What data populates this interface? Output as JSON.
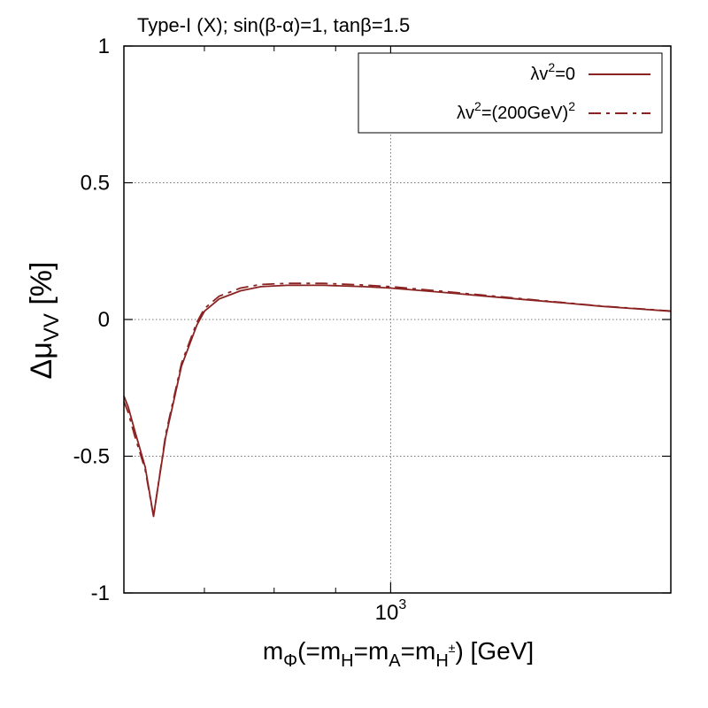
{
  "chart_data": {
    "type": "line",
    "title": "Type-I (X); sin(β-α)=1, tanβ=1.5",
    "ylabel": {
      "main": "Δμ",
      "sub": "VV",
      "unit": " [%]"
    },
    "xlabel": {
      "m": "m",
      "sub_phi": "Φ",
      "part1": "(=m",
      "sub_H": "H",
      "part2": "=m",
      "sub_A": "A",
      "part3": "=m",
      "sub_Hpm": "H",
      "sup_pm": "±",
      "part4": ") [GeV]"
    },
    "x_scale": "log",
    "xlim": [
      600,
      1710
    ],
    "ylim": [
      -1,
      1
    ],
    "y_ticks": [
      {
        "value": 1,
        "label": "1"
      },
      {
        "value": 0.5,
        "label": "0.5"
      },
      {
        "value": 0,
        "label": "0"
      },
      {
        "value": -0.5,
        "label": "-0.5"
      },
      {
        "value": -1,
        "label": "-1"
      }
    ],
    "x_ticks": [
      {
        "value": 1000,
        "base": "10",
        "exp": "3"
      }
    ],
    "x_minor_ticks": [
      700,
      800,
      900
    ],
    "grid": true,
    "legend_position": "top-right",
    "series": [
      {
        "name": {
          "lhs": "λv",
          "sup1": "2",
          "rhs": "=0",
          "sup2": ""
        },
        "style": "solid",
        "color": "#8b2323",
        "x": [
          600,
          605,
          612,
          625,
          635,
          640,
          650,
          670,
          690,
          700,
          720,
          750,
          780,
          820,
          880,
          950,
          1000,
          1100,
          1200,
          1300,
          1400,
          1500,
          1600,
          1710
        ],
        "y": [
          -0.28,
          -0.32,
          -0.4,
          -0.54,
          -0.72,
          -0.62,
          -0.43,
          -0.17,
          -0.02,
          0.03,
          0.075,
          0.105,
          0.12,
          0.125,
          0.125,
          0.12,
          0.115,
          0.1,
          0.085,
          0.072,
          0.06,
          0.048,
          0.039,
          0.03
        ]
      },
      {
        "name": {
          "lhs": "λv",
          "sup1": "2",
          "rhs": "=(200GeV)",
          "sup2": "2"
        },
        "style": "dashed",
        "color": "#8b2323",
        "x": [
          600,
          605,
          612,
          625,
          635,
          640,
          650,
          670,
          690,
          700,
          720,
          750,
          780,
          820,
          880,
          950,
          1000,
          1100,
          1200,
          1300,
          1400,
          1500,
          1600,
          1710
        ],
        "y": [
          -0.3,
          -0.34,
          -0.42,
          -0.55,
          -0.72,
          -0.62,
          -0.42,
          -0.16,
          -0.01,
          0.04,
          0.085,
          0.115,
          0.128,
          0.132,
          0.132,
          0.126,
          0.12,
          0.104,
          0.088,
          0.074,
          0.061,
          0.049,
          0.04,
          0.031
        ]
      }
    ]
  }
}
